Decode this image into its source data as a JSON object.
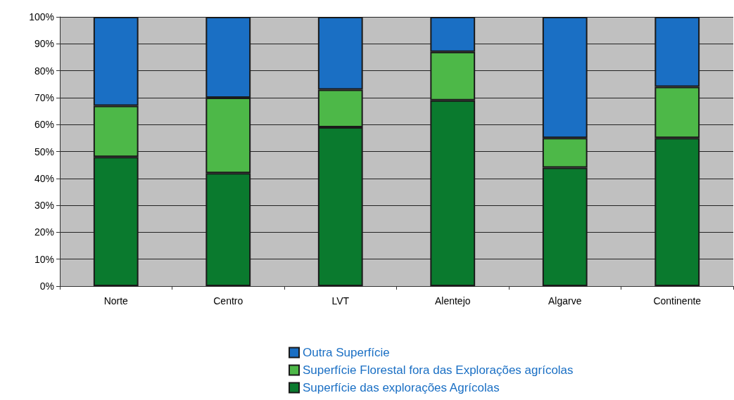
{
  "chart_data": {
    "type": "bar",
    "stacked": true,
    "categories": [
      "Norte",
      "Centro",
      "LVT",
      "Alentejo",
      "Algarve",
      "Continente"
    ],
    "series": [
      {
        "name": "Superfície das explorações Agrícolas",
        "color": "#0a7a2e",
        "values": [
          48,
          42,
          59,
          69,
          44,
          55
        ]
      },
      {
        "name": "Superfície Florestal fora das Explorações agrícolas",
        "color": "#4db848",
        "values": [
          19,
          28,
          14,
          18,
          11,
          19
        ]
      },
      {
        "name": "Outra Superfície",
        "color": "#1a6fc4",
        "values": [
          33,
          30,
          27,
          13,
          45,
          26
        ]
      }
    ],
    "ylim": [
      0,
      100
    ],
    "yticks": [
      {
        "value": 0,
        "label": "0%"
      },
      {
        "value": 10,
        "label": "10%"
      },
      {
        "value": 20,
        "label": "20%"
      },
      {
        "value": 30,
        "label": "30%"
      },
      {
        "value": 40,
        "label": "40%"
      },
      {
        "value": 50,
        "label": "50%"
      },
      {
        "value": 60,
        "label": "60%"
      },
      {
        "value": 70,
        "label": "70%"
      },
      {
        "value": 80,
        "label": "80%"
      },
      {
        "value": 90,
        "label": "90%"
      },
      {
        "value": 100,
        "label": "100%"
      }
    ],
    "grid": "y",
    "legend": "bottom"
  }
}
